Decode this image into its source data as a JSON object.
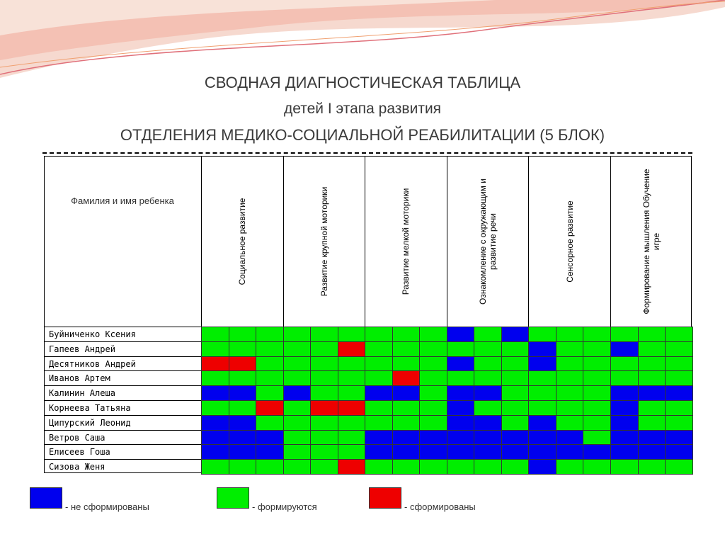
{
  "title": {
    "line1": "СВОДНАЯ ДИАГНОСТИЧЕСКАЯ ТАБЛИЦА",
    "line2": "детей  I этапа развития",
    "line3": "ОТДЕЛЕНИЯ МЕДИКО-СОЦИАЛЬНОЙ РЕАБИЛИТАЦИИ (5 БЛОК)"
  },
  "table": {
    "name_header": "Фамилия и  имя ребенка",
    "columns": [
      "Социальное развитие",
      "Развитие  крупной моторики",
      "Развитие  мелкой моторики",
      "Ознакомление с окружающим и развитие речи",
      "Сенсорное развитие",
      "Формирование мышления Обучение игре"
    ],
    "rows": [
      {
        "name": "Буйниченко  Ксения",
        "cells": [
          "#00ee00",
          "#00ee00",
          "#00ee00",
          "#00ee00",
          "#00ee00",
          "#00ee00",
          "#00ee00",
          "#00ee00",
          "#00ee00",
          "#0000ee",
          "#00ee00",
          "#0000ee",
          "#00ee00",
          "#00ee00",
          "#00ee00",
          "#00ee00",
          "#00ee00",
          "#00ee00"
        ]
      },
      {
        "name": "Гапеев  Андрей",
        "cells": [
          "#00ee00",
          "#00ee00",
          "#00ee00",
          "#00ee00",
          "#00ee00",
          "#ee0000",
          "#00ee00",
          "#00ee00",
          "#00ee00",
          "#00ee00",
          "#00ee00",
          "#00ee00",
          "#0000ee",
          "#00ee00",
          "#00ee00",
          "#0000ee",
          "#00ee00",
          "#00ee00"
        ]
      },
      {
        "name": "Десятников  Андрей",
        "cells": [
          "#ee0000",
          "#ee0000",
          "#00ee00",
          "#00ee00",
          "#00ee00",
          "#00ee00",
          "#00ee00",
          "#00ee00",
          "#00ee00",
          "#0000ee",
          "#00ee00",
          "#00ee00",
          "#0000ee",
          "#00ee00",
          "#00ee00",
          "#00ee00",
          "#00ee00",
          "#00ee00"
        ]
      },
      {
        "name": "Иванов  Артем",
        "cells": [
          "#00ee00",
          "#00ee00",
          "#00ee00",
          "#00ee00",
          "#00ee00",
          "#00ee00",
          "#00ee00",
          "#ee0000",
          "#00ee00",
          "#00ee00",
          "#00ee00",
          "#00ee00",
          "#00ee00",
          "#00ee00",
          "#00ee00",
          "#00ee00",
          "#00ee00",
          "#00ee00"
        ]
      },
      {
        "name": "Калинин  Алеша",
        "cells": [
          "#0000ee",
          "#0000ee",
          "#00ee00",
          "#0000ee",
          "#00ee00",
          "#00ee00",
          "#0000ee",
          "#0000ee",
          "#00ee00",
          "#0000ee",
          "#0000ee",
          "#00ee00",
          "#00ee00",
          "#00ee00",
          "#00ee00",
          "#0000ee",
          "#0000ee",
          "#0000ee"
        ]
      },
      {
        "name": "Корнеева  Татьяна",
        "cells": [
          "#00ee00",
          "#00ee00",
          "#ee0000",
          "#00ee00",
          "#ee0000",
          "#ee0000",
          "#00ee00",
          "#00ee00",
          "#00ee00",
          "#0000ee",
          "#00ee00",
          "#00ee00",
          "#00ee00",
          "#00ee00",
          "#00ee00",
          "#0000ee",
          "#00ee00",
          "#00ee00"
        ]
      },
      {
        "name": "Ципурский  Леонид",
        "cells": [
          "#0000ee",
          "#0000ee",
          "#00ee00",
          "#00ee00",
          "#00ee00",
          "#00ee00",
          "#00ee00",
          "#00ee00",
          "#00ee00",
          "#0000ee",
          "#0000ee",
          "#00ee00",
          "#0000ee",
          "#00ee00",
          "#00ee00",
          "#0000ee",
          "#00ee00",
          "#00ee00"
        ]
      },
      {
        "name": "Ветров  Саша",
        "cells": [
          "#0000ee",
          "#0000ee",
          "#0000ee",
          "#00ee00",
          "#00ee00",
          "#00ee00",
          "#0000ee",
          "#0000ee",
          "#0000ee",
          "#0000ee",
          "#0000ee",
          "#0000ee",
          "#0000ee",
          "#0000ee",
          "#00ee00",
          "#0000ee",
          "#0000ee",
          "#0000ee"
        ]
      },
      {
        "name": "Елисеев  Гоша",
        "cells": [
          "#0000ee",
          "#0000ee",
          "#0000ee",
          "#00ee00",
          "#00ee00",
          "#00ee00",
          "#0000ee",
          "#0000ee",
          "#0000ee",
          "#0000ee",
          "#0000ee",
          "#0000ee",
          "#0000ee",
          "#0000ee",
          "#0000ee",
          "#0000ee",
          "#0000ee",
          "#0000ee"
        ]
      },
      {
        "name": "Сизова  Женя",
        "cells": [
          "#00ee00",
          "#00ee00",
          "#00ee00",
          "#00ee00",
          "#00ee00",
          "#ee0000",
          "#00ee00",
          "#00ee00",
          "#00ee00",
          "#00ee00",
          "#00ee00",
          "#00ee00",
          "#0000ee",
          "#00ee00",
          "#00ee00",
          "#00ee00",
          "#00ee00",
          "#00ee00"
        ]
      }
    ]
  },
  "legend": [
    {
      "color": "#0000ee",
      "label": "- не сформированы"
    },
    {
      "color": "#00ee00",
      "label": "- формируются"
    },
    {
      "color": "#ee0000",
      "label": "- сформированы"
    }
  ]
}
